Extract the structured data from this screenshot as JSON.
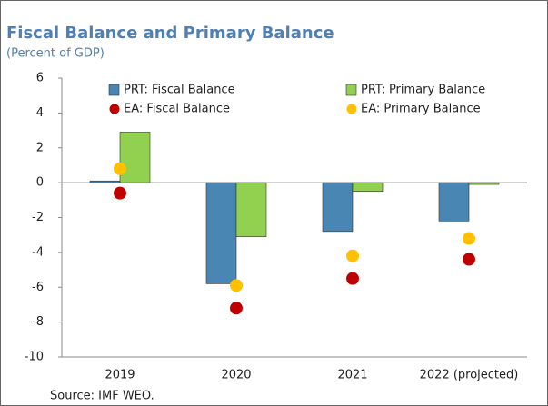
{
  "chart_data": {
    "type": "bar",
    "title": "Fiscal Balance and Primary Balance",
    "subtitle": "(Percent of GDP)",
    "source": "Source: IMF WEO.",
    "categories": [
      "2019",
      "2020",
      "2021",
      "2022 (projected)"
    ],
    "series": [
      {
        "name": "PRT: Fiscal Balance",
        "type": "bar",
        "color": "#4a86b4",
        "values": [
          0.1,
          -5.8,
          -2.8,
          -2.2
        ]
      },
      {
        "name": "PRT: Primary Balance",
        "type": "bar",
        "color": "#92d050",
        "values": [
          2.9,
          -3.1,
          -0.5,
          -0.1
        ]
      },
      {
        "name": "EA: Fiscal Balance",
        "type": "dot",
        "color": "#c00000",
        "values": [
          -0.6,
          -7.2,
          -5.5,
          -4.4
        ]
      },
      {
        "name": "EA: Primary Balance",
        "type": "dot",
        "color": "#ffc000",
        "values": [
          0.8,
          -5.9,
          -4.2,
          -3.2
        ]
      }
    ],
    "ylim": [
      -10,
      6
    ],
    "yticks": [
      -10,
      -8,
      -6,
      -4,
      -2,
      0,
      2,
      4,
      6
    ],
    "grid": false,
    "legend": "top"
  }
}
